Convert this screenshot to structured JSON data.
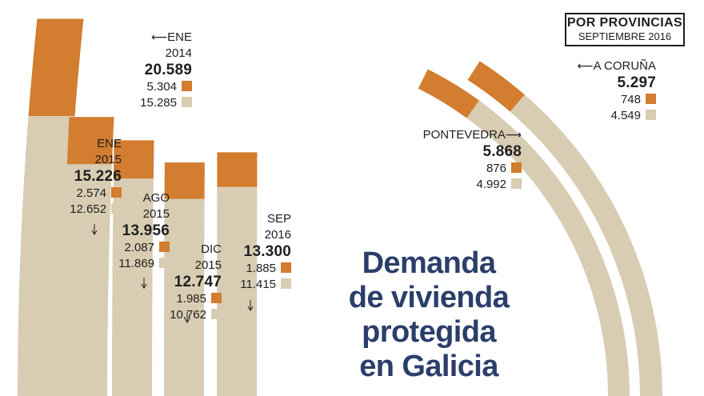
{
  "chart_data": {
    "type": "bar",
    "title": "Demanda de vivienda protegida en Galicia",
    "series_colors": {
      "orange": "#d27d2f",
      "beige": "#d8ccb2"
    },
    "timeline": [
      {
        "month": "ENE",
        "year": "2014",
        "total": "20.589",
        "orange_label": "5.304",
        "beige_label": "15.285",
        "orange": 5304,
        "beige": 15285
      },
      {
        "month": "ENE",
        "year": "2015",
        "total": "15.226",
        "orange_label": "2.574",
        "beige_label": "12.652",
        "orange": 2574,
        "beige": 12652
      },
      {
        "month": "AGO",
        "year": "2015",
        "total": "13.956",
        "orange_label": "2.087",
        "beige_label": "11.869",
        "orange": 2087,
        "beige": 11869
      },
      {
        "month": "DIC",
        "year": "2015",
        "total": "12.747",
        "orange_label": "1.985",
        "beige_label": "10.762",
        "orange": 1985,
        "beige": 10762
      },
      {
        "month": "SEP",
        "year": "2016",
        "total": "13.300",
        "orange_label": "1.885",
        "beige_label": "11.415",
        "orange": 1885,
        "beige": 11415
      }
    ],
    "provinces_title": "POR PROVINCIAS",
    "provinces_subtitle": "SEPTIEMBRE 2016",
    "provinces": [
      {
        "name": "PONTEVEDRA",
        "total": "5.868",
        "orange_label": "876",
        "beige_label": "4.992",
        "orange": 876,
        "beige": 4992
      },
      {
        "name": "A CORUÑA",
        "total": "5.297",
        "orange_label": "748",
        "beige_label": "4.549",
        "orange": 748,
        "beige": 4549
      }
    ]
  },
  "headline": {
    "line1": "Demanda",
    "line2": "de vivienda",
    "line3": "protegida",
    "line4": "en Galicia"
  }
}
